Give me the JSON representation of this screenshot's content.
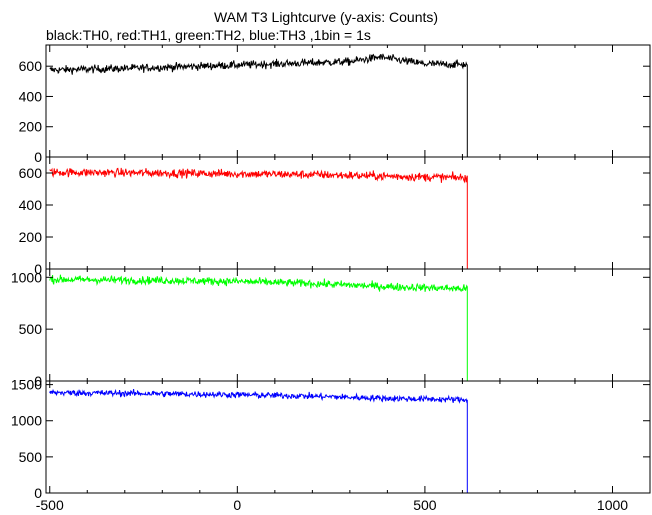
{
  "title": "WAM T3 Lightcurve (y-axis: Counts)",
  "subtitle": "black:TH0, red:TH1, green:TH2, blue:TH3 ,1bin = 1s",
  "chart_data": {
    "type": "line",
    "xlim": [
      -510,
      1100
    ],
    "x_ticks": [
      -500,
      0,
      500,
      1000
    ],
    "x_tick_labels": [
      "-500",
      "0",
      "500",
      "1000"
    ],
    "data_end_x": 613,
    "bin_seconds": 1,
    "panels": [
      {
        "series": "TH0",
        "color": "#000000",
        "ylim": [
          0,
          740
        ],
        "y_ticks": [
          0,
          200,
          400,
          600
        ],
        "y_tick_labels": [
          "0",
          "200",
          "400",
          "600"
        ],
        "trend_x": [
          -500,
          -300,
          -100,
          100,
          300,
          380,
          420,
          500,
          613
        ],
        "trend_y": [
          575,
          585,
          600,
          615,
          630,
          660,
          645,
          615,
          610
        ],
        "noise": 45,
        "after_end_y": 0
      },
      {
        "series": "TH1",
        "color": "#ff0000",
        "ylim": [
          0,
          700
        ],
        "y_ticks": [
          0,
          200,
          400,
          600
        ],
        "y_tick_labels": [
          "0",
          "200",
          "400",
          "600"
        ],
        "trend_x": [
          -500,
          -200,
          0,
          200,
          400,
          613
        ],
        "trend_y": [
          605,
          600,
          595,
          590,
          580,
          570
        ],
        "noise": 45,
        "after_end_y": 0
      },
      {
        "series": "TH2",
        "color": "#00ff00",
        "ylim": [
          0,
          1080
        ],
        "y_ticks": [
          0,
          500,
          1000
        ],
        "y_tick_labels": [
          "0",
          "500",
          "1000"
        ],
        "trend_x": [
          -500,
          -200,
          0,
          200,
          400,
          613
        ],
        "trend_y": [
          980,
          970,
          960,
          940,
          910,
          890
        ],
        "noise": 65,
        "after_end_y": 0
      },
      {
        "series": "TH3",
        "color": "#0000ff",
        "ylim": [
          0,
          1550
        ],
        "y_ticks": [
          0,
          500,
          1000,
          1500
        ],
        "y_tick_labels": [
          "0",
          "500",
          "1000",
          "1500"
        ],
        "trend_x": [
          -500,
          -200,
          0,
          200,
          400,
          613
        ],
        "trend_y": [
          1390,
          1375,
          1360,
          1340,
          1310,
          1290
        ],
        "noise": 75,
        "after_end_y": 0
      }
    ]
  }
}
